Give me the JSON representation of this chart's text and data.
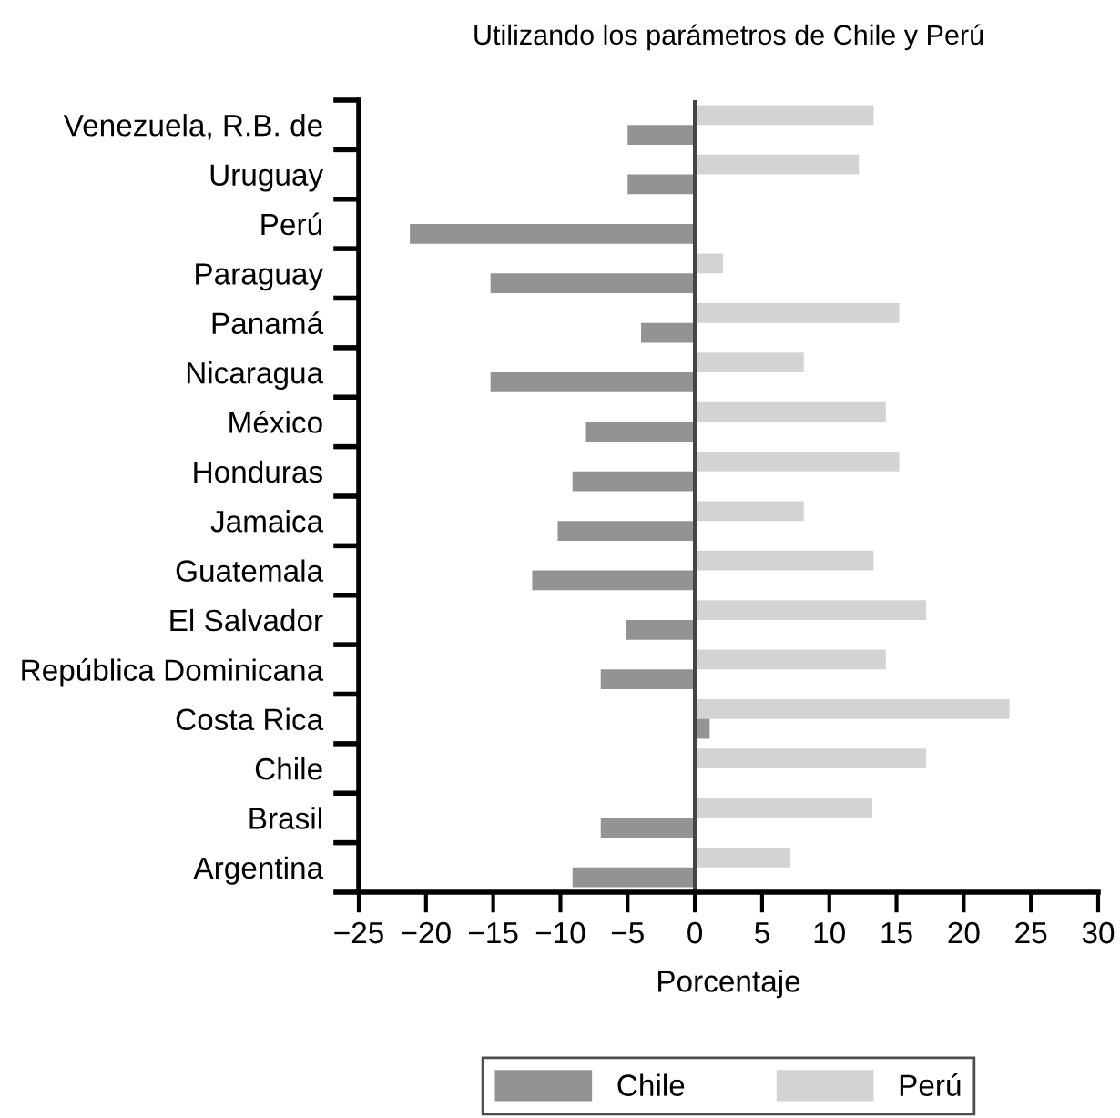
{
  "chart_data": {
    "type": "bar",
    "orientation": "horizontal",
    "title": "Utilizando los parámetros de Chile y Perú",
    "xlabel": "Porcentaje",
    "categories": [
      "Venezuela, R.B. de",
      "Uruguay",
      "Perú",
      "Paraguay",
      "Panamá",
      "Nicaragua",
      "México",
      "Honduras",
      "Jamaica",
      "Guatemala",
      "El Salvador",
      "República Dominicana",
      "Costa Rica",
      "Chile",
      "Brasil",
      "Argentina"
    ],
    "series": [
      {
        "name": "Perú",
        "color": "#d3d3d3",
        "values": [
          13.3,
          12.2,
          null,
          2.1,
          15.2,
          8.1,
          14.2,
          15.2,
          8.1,
          13.3,
          17.2,
          14.2,
          23.4,
          17.2,
          13.2,
          7.1
        ]
      },
      {
        "name": "Chile",
        "color": "#939393",
        "values": [
          -5,
          -5,
          -21.2,
          -15.2,
          -4,
          -15.2,
          -8.1,
          -9.1,
          -10.2,
          -12.1,
          -5.1,
          -7,
          1.1,
          null,
          -7,
          -9.1
        ]
      }
    ],
    "xlim": [
      -25,
      30
    ],
    "xticks": [
      -25,
      -20,
      -15,
      -10,
      -5,
      0,
      5,
      10,
      15,
      20,
      25,
      30
    ],
    "ref_lines": [
      {
        "axis": "x",
        "value": 0,
        "color": "#444444"
      }
    ],
    "grid": false,
    "legend": "bottom"
  }
}
